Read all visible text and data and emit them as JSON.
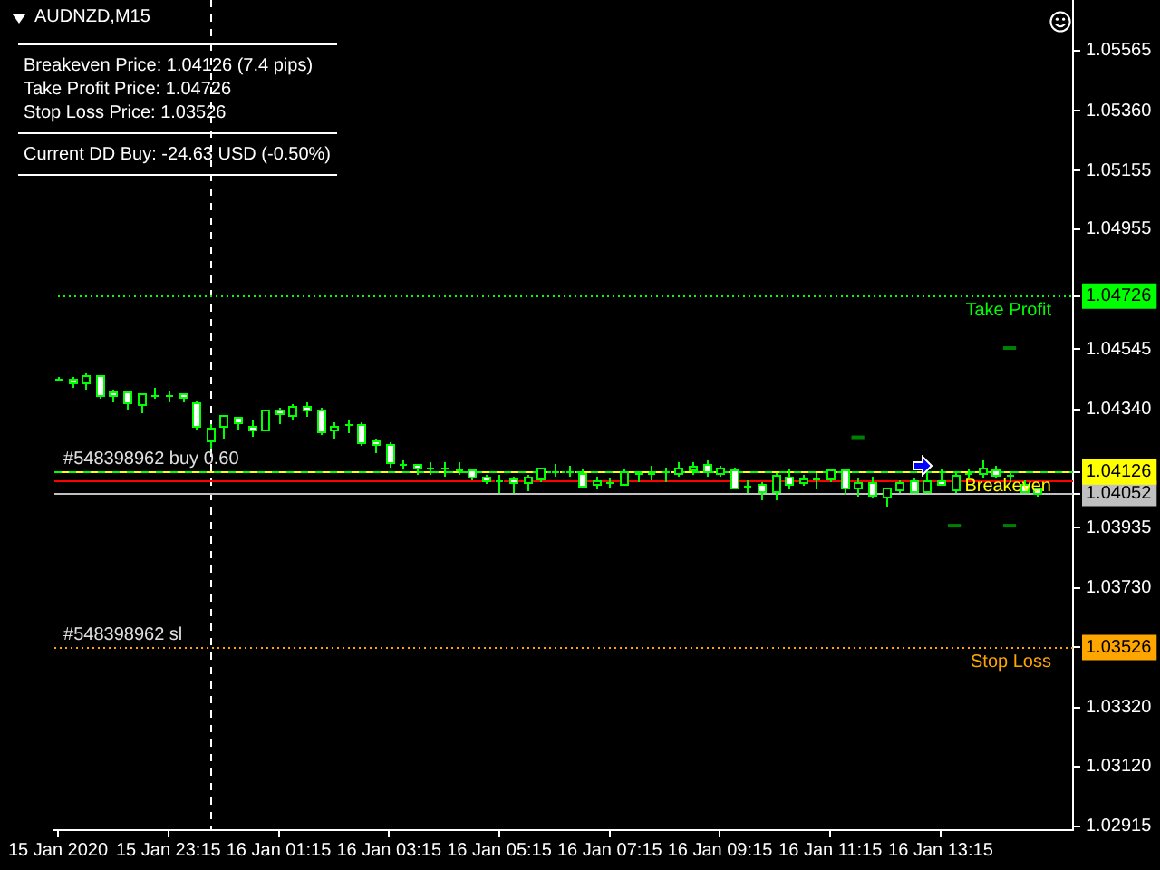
{
  "chart_data": {
    "type": "candlestick",
    "title": "AUDNZD,M15",
    "x": [
      "2020-01-15T21:15",
      "2020-01-15T21:30",
      "2020-01-15T21:45",
      "2020-01-15T22:00",
      "2020-01-15T22:15",
      "2020-01-15T22:30",
      "2020-01-15T22:45",
      "2020-01-15T23:00",
      "2020-01-15T23:15",
      "2020-01-15T23:30",
      "2020-01-15T23:45",
      "2020-01-16T00:00",
      "2020-01-16T00:15",
      "2020-01-16T00:30",
      "2020-01-16T00:45",
      "2020-01-16T01:00",
      "2020-01-16T01:15",
      "2020-01-16T01:30",
      "2020-01-16T01:45",
      "2020-01-16T02:00",
      "2020-01-16T02:15",
      "2020-01-16T02:30",
      "2020-01-16T02:45",
      "2020-01-16T03:00",
      "2020-01-16T03:15",
      "2020-01-16T03:30",
      "2020-01-16T03:45",
      "2020-01-16T04:00",
      "2020-01-16T04:15",
      "2020-01-16T04:30",
      "2020-01-16T04:45",
      "2020-01-16T05:00",
      "2020-01-16T05:15",
      "2020-01-16T05:30",
      "2020-01-16T05:45",
      "2020-01-16T06:00",
      "2020-01-16T06:15",
      "2020-01-16T06:30",
      "2020-01-16T06:45",
      "2020-01-16T07:00",
      "2020-01-16T07:15",
      "2020-01-16T07:30",
      "2020-01-16T07:45",
      "2020-01-16T08:00",
      "2020-01-16T08:15",
      "2020-01-16T08:30",
      "2020-01-16T08:45",
      "2020-01-16T09:00",
      "2020-01-16T09:15",
      "2020-01-16T09:30",
      "2020-01-16T09:45",
      "2020-01-16T10:00",
      "2020-01-16T10:15",
      "2020-01-16T10:30",
      "2020-01-16T10:45",
      "2020-01-16T11:00",
      "2020-01-16T11:15",
      "2020-01-16T11:30",
      "2020-01-16T11:45",
      "2020-01-16T12:00",
      "2020-01-16T12:15",
      "2020-01-16T12:30",
      "2020-01-16T12:45",
      "2020-01-16T13:00",
      "2020-01-16T13:15",
      "2020-01-16T13:30",
      "2020-01-16T13:45",
      "2020-01-16T14:00",
      "2020-01-16T14:15",
      "2020-01-16T14:30",
      "2020-01-16T14:45",
      "2020-01-16T15:00"
    ],
    "ohlc": [
      [
        1.04446,
        1.0445,
        1.04442,
        1.04446
      ],
      [
        1.04442,
        1.0445,
        1.04417,
        1.0443
      ],
      [
        1.0443,
        1.04463,
        1.04413,
        1.04459
      ],
      [
        1.04455,
        1.04459,
        1.04384,
        1.04387
      ],
      [
        1.04401,
        1.04409,
        1.04372,
        1.04389
      ],
      [
        1.04399,
        1.04403,
        1.04347,
        1.04362
      ],
      [
        1.0436,
        1.04397,
        1.04335,
        1.04393
      ],
      [
        1.04391,
        1.04413,
        1.0438,
        1.04391
      ],
      [
        1.04389,
        1.04401,
        1.04372,
        1.04389
      ],
      [
        1.04393,
        1.04397,
        1.04372,
        1.0438
      ],
      [
        1.04362,
        1.04368,
        1.04277,
        1.04281
      ],
      [
        1.04236,
        1.04287,
        1.04211,
        1.04275
      ],
      [
        1.04285,
        1.04323,
        1.04248,
        1.04318
      ],
      [
        1.04312,
        1.04316,
        1.04277,
        1.04294
      ],
      [
        1.04283,
        1.04302,
        1.04252,
        1.04269
      ],
      [
        1.04273,
        1.04341,
        1.04271,
        1.04339
      ],
      [
        1.04339,
        1.04343,
        1.04298,
        1.04327
      ],
      [
        1.04323,
        1.0436,
        1.0431,
        1.04351
      ],
      [
        1.04351,
        1.04364,
        1.04323,
        1.04339
      ],
      [
        1.04339,
        1.04343,
        1.04261,
        1.04263
      ],
      [
        1.04269,
        1.04298,
        1.04248,
        1.04285
      ],
      [
        1.04287,
        1.04304,
        1.04267,
        1.04287
      ],
      [
        1.0429,
        1.04294,
        1.04219,
        1.0423
      ],
      [
        1.04234,
        1.04242,
        1.04195,
        1.04221
      ],
      [
        1.04219,
        1.04228,
        1.04145,
        1.04157
      ],
      [
        1.04154,
        1.04166,
        1.04139,
        1.04154
      ],
      [
        1.0415,
        1.04154,
        1.0412,
        1.04139
      ],
      [
        1.04141,
        1.04157,
        1.04124,
        1.04141
      ],
      [
        1.04139,
        1.04157,
        1.04118,
        1.04139
      ],
      [
        1.04133,
        1.04157,
        1.0412,
        1.04133
      ],
      [
        1.04133,
        1.04137,
        1.04104,
        1.04108
      ],
      [
        1.0411,
        1.04116,
        1.04091,
        1.04098
      ],
      [
        1.041,
        1.04116,
        1.04063,
        1.041
      ],
      [
        1.04104,
        1.04112,
        1.04063,
        1.04089
      ],
      [
        1.04089,
        1.04114,
        1.04065,
        1.0411
      ],
      [
        1.04106,
        1.04143,
        1.041,
        1.04139
      ],
      [
        1.04129,
        1.04151,
        1.04118,
        1.04129
      ],
      [
        1.04129,
        1.04145,
        1.04116,
        1.04129
      ],
      [
        1.04124,
        1.04133,
        1.04077,
        1.04081
      ],
      [
        1.04083,
        1.04108,
        1.04075,
        1.04098
      ],
      [
        1.04089,
        1.04104,
        1.04077,
        1.04089
      ],
      [
        1.04087,
        1.04133,
        1.04083,
        1.04127
      ],
      [
        1.04124,
        1.04131,
        1.04096,
        1.04124
      ],
      [
        1.04124,
        1.04145,
        1.04104,
        1.04124
      ],
      [
        1.04127,
        1.04143,
        1.041,
        1.04127
      ],
      [
        1.0412,
        1.04157,
        1.04116,
        1.04141
      ],
      [
        1.04133,
        1.04157,
        1.04124,
        1.04149
      ],
      [
        1.04151,
        1.04166,
        1.04116,
        1.04129
      ],
      [
        1.0412,
        1.04149,
        1.04116,
        1.04139
      ],
      [
        1.04137,
        1.04141,
        1.04071,
        1.04075
      ],
      [
        1.04079,
        1.04096,
        1.04063,
        1.04079
      ],
      [
        1.04083,
        1.04091,
        1.04036,
        1.04058
      ],
      [
        1.04058,
        1.0412,
        1.04038,
        1.04116
      ],
      [
        1.04112,
        1.04133,
        1.04071,
        1.04087
      ],
      [
        1.04089,
        1.04116,
        1.04083,
        1.04104
      ],
      [
        1.04106,
        1.04124,
        1.04075,
        1.04106
      ],
      [
        1.04102,
        1.04137,
        1.04098,
        1.04133
      ],
      [
        1.04133,
        1.04137,
        1.04054,
        1.04071
      ],
      [
        1.04071,
        1.04106,
        1.04046,
        1.04089
      ],
      [
        1.04089,
        1.04108,
        1.04042,
        1.04046
      ],
      [
        1.04042,
        1.04075,
        1.04009,
        1.04071
      ],
      [
        1.04067,
        1.04096,
        1.04058,
        1.04089
      ],
      [
        1.04096,
        1.04104,
        1.04058,
        1.04063
      ],
      [
        1.04063,
        1.0412,
        1.04058,
        1.04096
      ],
      [
        1.04094,
        1.04133,
        1.04083,
        1.04085
      ],
      [
        1.04067,
        1.04124,
        1.04063,
        1.04118
      ],
      [
        1.0412,
        1.04137,
        1.04108,
        1.0412
      ],
      [
        1.04122,
        1.04166,
        1.04112,
        1.04139
      ],
      [
        1.04137,
        1.04145,
        1.0411,
        1.04114
      ],
      [
        1.04114,
        1.04129,
        1.041,
        1.04114
      ],
      [
        1.04087,
        1.04096,
        1.04058,
        1.04063
      ],
      [
        1.04071,
        1.04075,
        1.04048,
        1.04052
      ]
    ],
    "color": "#00ff00",
    "colors": [
      "#000000",
      "#ffffff",
      "#000000",
      "#ffffff",
      "#ffffff",
      "#ffffff",
      "#000000",
      "#000000",
      "#000000",
      "#ffffff",
      "#ffffff",
      "#000000",
      "#000000",
      "#ffffff",
      "#ffffff",
      "#000000",
      "#ffffff",
      "#000000",
      "#ffffff",
      "#ffffff",
      "#000000",
      "#000000",
      "#ffffff",
      "#ffffff",
      "#ffffff",
      "#000000",
      "#ffffff",
      "#000000",
      "#000000",
      "#000000",
      "#ffffff",
      "#ffffff",
      "#000000",
      "#ffffff",
      "#000000",
      "#000000",
      "#000000",
      "#000000",
      "#ffffff",
      "#000000",
      "#000000",
      "#000000",
      "#000000",
      "#000000",
      "#000000",
      "#000000",
      "#000000",
      "#ffffff",
      "#000000",
      "#ffffff",
      "#000000",
      "#ffffff",
      "#000000",
      "#ffffff",
      "#000000",
      "#000000",
      "#000000",
      "#ffffff",
      "#000000",
      "#ffffff",
      "#000000",
      "#000000",
      "#ffffff",
      "#000000",
      "#ffffff",
      "#000000",
      "#000000",
      "#000000",
      "#ffffff",
      "#000000",
      "#ffffff",
      "#ffffff"
    ],
    "series": [
      {
        "type": "line",
        "color": "#008000",
        "x": [
          "2020-01-16T11:38",
          "2020-01-16T11:52"
        ],
        "values": [
          1.04244,
          1.04244
        ]
      },
      {
        "type": "line",
        "color": "#008000",
        "x": [
          "2020-01-16T13:23",
          "2020-01-16T13:37"
        ],
        "values": [
          1.03942,
          1.03942
        ]
      },
      {
        "type": "line",
        "color": "#008000",
        "x": [
          "2020-01-16T14:23",
          "2020-01-16T14:37"
        ],
        "values": [
          1.04549,
          1.04549
        ]
      },
      {
        "type": "line",
        "color": "#008000",
        "x": [
          "2020-01-16T14:23",
          "2020-01-16T14:37"
        ],
        "values": [
          1.03942,
          1.03942
        ]
      }
    ],
    "xlim": [
      "2020-01-15T21:11",
      "2020-01-16T15:39"
    ],
    "xticks": [
      {
        "value": "2020-01-15T21:15",
        "label": "15 Jan 2020"
      },
      {
        "value": "2020-01-15T23:15",
        "label": "15 Jan 23:15"
      },
      {
        "value": "2020-01-16T01:15",
        "label": "16 Jan 01:15"
      },
      {
        "value": "2020-01-16T03:15",
        "label": "16 Jan 03:15"
      },
      {
        "value": "2020-01-16T05:15",
        "label": "16 Jan 05:15"
      },
      {
        "value": "2020-01-16T07:15",
        "label": "16 Jan 07:15"
      },
      {
        "value": "2020-01-16T09:15",
        "label": "16 Jan 09:15"
      },
      {
        "value": "2020-01-16T11:15",
        "label": "16 Jan 11:15"
      },
      {
        "value": "2020-01-16T13:15",
        "label": "16 Jan 13:15"
      }
    ],
    "ylim": [
      1.02902,
      1.05738
    ],
    "yticks": [
      1.02915,
      {
        "value": 1.0312,
        "label": "1.03120"
      },
      {
        "value": 1.0332,
        "label": "1.03320"
      },
      1.03526,
      {
        "value": 1.0373,
        "label": "1.03730"
      },
      1.03935,
      1.04052,
      1.04126,
      {
        "value": 1.0434,
        "label": "1.04340"
      },
      1.04545,
      1.04726,
      1.04955,
      1.05155,
      {
        "value": 1.0536,
        "label": "1.05360"
      },
      1.05565
    ],
    "ref_lines": [
      {
        "axis": "x",
        "value": "2020-01-16T00:00",
        "color": "#ffffff",
        "line_style": "dashed"
      },
      {
        "axis": "y",
        "value": 1.04726,
        "label": "Take Profit",
        "color": "#00ff00",
        "line_style": "dotted"
      },
      {
        "axis": "y",
        "value": 1.04126,
        "color": "#00ff00",
        "line_style": "dashed"
      },
      {
        "axis": "y",
        "value": 1.04126,
        "label": "Breakeven",
        "color": "#ffff00",
        "line_style": "dashed"
      },
      {
        "axis": "y",
        "value": 1.04095,
        "color": "#ff0000",
        "line_style": "solid"
      },
      {
        "axis": "y",
        "value": 1.04052,
        "color": "#c0c0c0",
        "line_style": "solid"
      },
      {
        "axis": "y",
        "value": 1.03526,
        "label": "Stop Loss",
        "color": "#ffa500",
        "line_style": "dotted"
      }
    ],
    "annotations": [
      "Breakeven Price: 1.04126 (7.4 pips)\nTake Profit Price: 1.04726\nStop Loss Price: 1.03526",
      "Current DD Buy: -24.63 USD (-0.50%)",
      {
        "text": "#548398962 buy 0.60",
        "x": "2020-01-15T21:15",
        "y": 1.04126
      },
      {
        "text": "#548398962 sl",
        "x": "2020-01-15T21:15",
        "y": 1.03526
      }
    ]
  }
}
